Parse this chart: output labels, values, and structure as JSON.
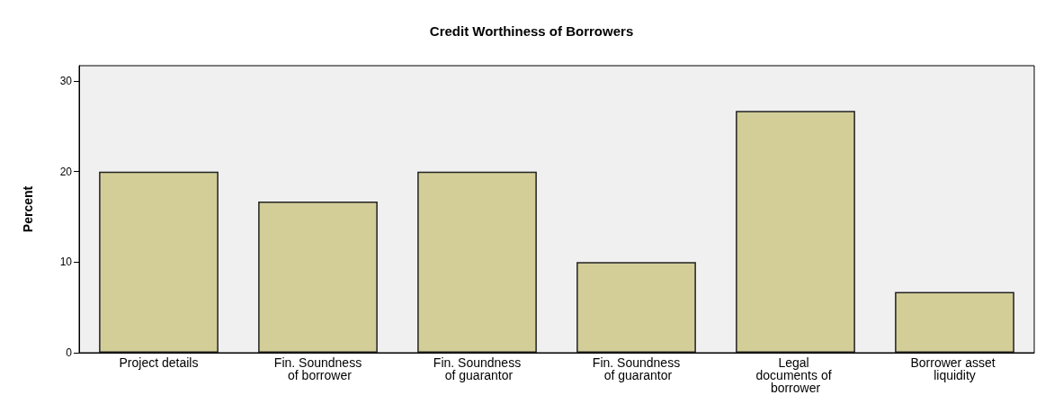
{
  "chart_data": {
    "type": "bar",
    "title": "Credit Worthiness of Borrowers",
    "ylabel": "Percent",
    "categories": [
      "Project details",
      "Fin. Soundness of borrower",
      "Fin. Soundness of guarantor",
      "Fin. Soundness of guarantor",
      "Legal documents of borrower",
      "Borrower asset liquidity"
    ],
    "values": [
      20,
      16.7,
      20,
      10,
      26.7,
      6.7
    ],
    "color": "#d3ce98",
    "ylim": [
      0,
      31.7
    ],
    "yticks": [
      0,
      10,
      20,
      30
    ],
    "grid": false
  }
}
